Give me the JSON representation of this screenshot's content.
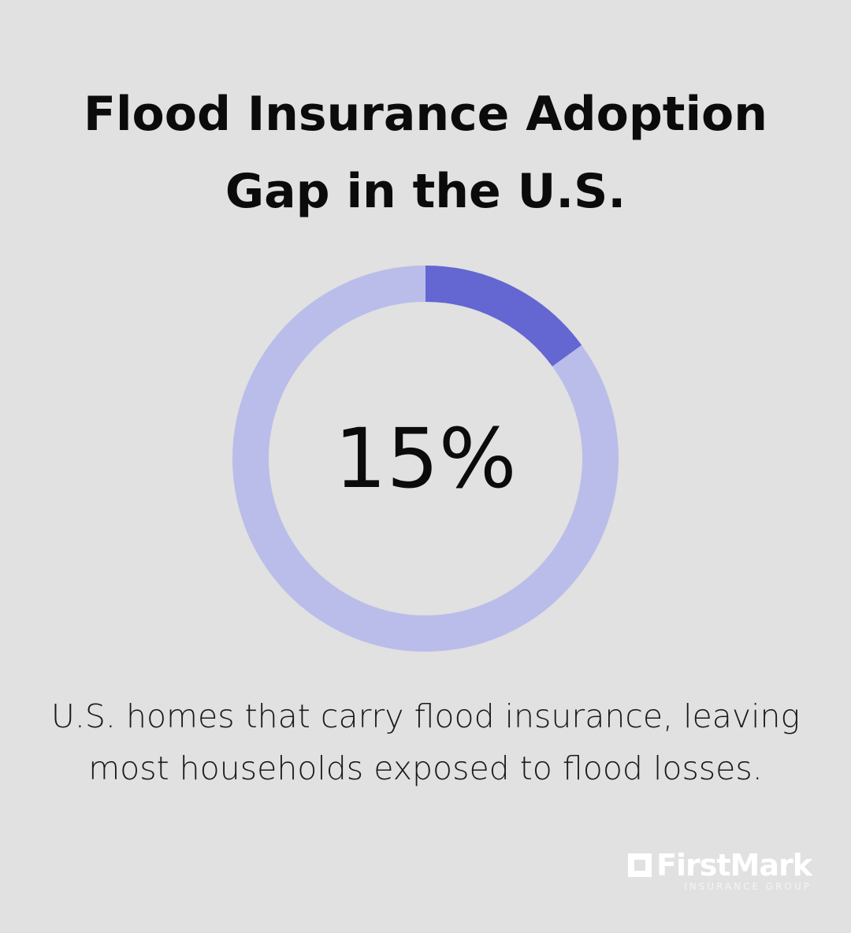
{
  "chart_data": {
    "type": "donut",
    "title": "Flood Insurance Adoption Gap in the U.S.",
    "values": [
      15,
      85
    ],
    "value_labels": [
      "15%",
      null
    ],
    "colors": [
      "#6466d1",
      "#babdea"
    ],
    "description": "U.S. homes that carry flood insurance, leaving most households exposed to flood losses."
  },
  "brand": {
    "name": "FirstMark",
    "tagline": "INSURANCE GROUP"
  }
}
